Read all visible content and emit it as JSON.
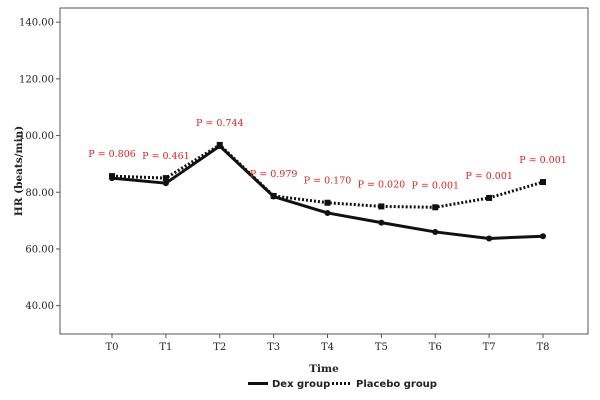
{
  "chart_data": {
    "type": "line",
    "title": "",
    "xlabel": "Time",
    "ylabel": "HR (beats/min)",
    "categories": [
      "T0",
      "T1",
      "T2",
      "T3",
      "T4",
      "T5",
      "T6",
      "T7",
      "T8"
    ],
    "ylim": [
      30,
      145
    ],
    "yticks": [
      "40.00",
      "60.00",
      "80.00",
      "100.00",
      "120.00",
      "140.00"
    ],
    "grid": false,
    "legend_position": "bottom",
    "series": [
      {
        "name": "Dex group",
        "style": "solid",
        "marker": "circle",
        "color": "#111111",
        "values": [
          85.0,
          83.2,
          96.3,
          78.5,
          72.7,
          69.3,
          66.0,
          63.7,
          64.5
        ]
      },
      {
        "name": "Placebo group",
        "style": "dotted",
        "marker": "square",
        "color": "#111111",
        "values": [
          85.7,
          85.0,
          96.7,
          78.7,
          76.3,
          75.0,
          74.7,
          78.0,
          83.6
        ]
      }
    ],
    "annotations": [
      {
        "category": "T0",
        "text": "P = 0.806"
      },
      {
        "category": "T1",
        "text": "P = 0.461"
      },
      {
        "category": "T2",
        "text": "P = 0.744"
      },
      {
        "category": "T3",
        "text": "P = 0.979"
      },
      {
        "category": "T4",
        "text": "P = 0.170"
      },
      {
        "category": "T5",
        "text": "P = 0.020"
      },
      {
        "category": "T6",
        "text": "P = 0.001"
      },
      {
        "category": "T7",
        "text": "P = 0.001"
      },
      {
        "category": "T8",
        "text": "P = 0.001"
      }
    ],
    "annotation_color": "#e02020"
  }
}
